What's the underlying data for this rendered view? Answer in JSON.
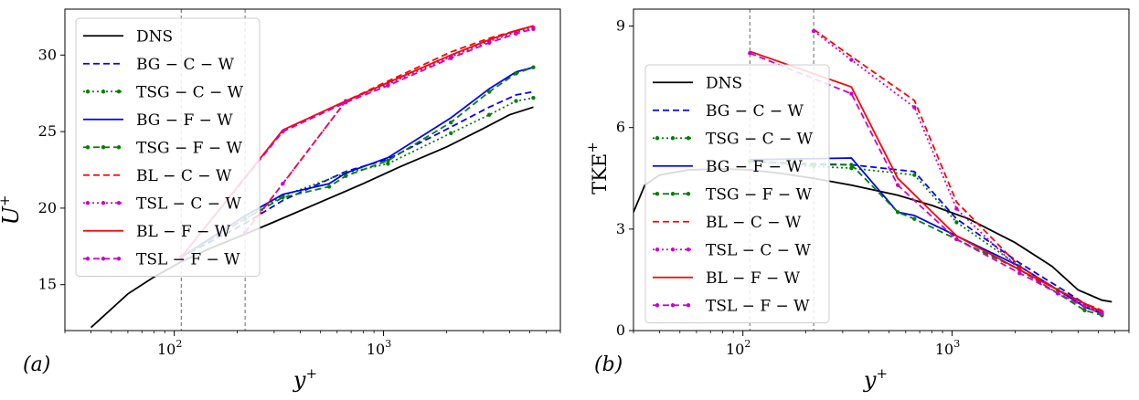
{
  "figure": {
    "panels": [
      {
        "label": "(a)",
        "ylabel_main": "U",
        "ylabel_sup": "+",
        "xlabel_main": "y",
        "xlabel_sup": "+"
      },
      {
        "label": "(b)",
        "ylabel_main": "TKE",
        "ylabel_sup": "+",
        "xlabel_main": "y",
        "xlabel_sup": "+"
      }
    ]
  },
  "chart_data": [
    {
      "type": "line",
      "panel_label": "(a)",
      "xscale": "log",
      "xlim": [
        30,
        7000
      ],
      "ylim": [
        12,
        33
      ],
      "ylabel": "U+",
      "xlabel": "y+",
      "xticks": [
        {
          "value": 100,
          "base": "10",
          "exp": "2"
        },
        {
          "value": 1000,
          "base": "10",
          "exp": "3"
        }
      ],
      "yticks": [
        15,
        20,
        25,
        30
      ],
      "vlines": [
        108,
        218
      ],
      "legend_position": "upper-left",
      "series": [
        {
          "name": "DNS",
          "color": "#000000",
          "dash": "",
          "marker": false,
          "x": [
            40,
            60,
            80,
            108,
            150,
            218,
            300,
            500,
            800,
            1200,
            2000,
            3000,
            4000,
            5200
          ],
          "y": [
            12.2,
            14.4,
            15.5,
            16.5,
            17.4,
            18.3,
            19.1,
            20.4,
            21.6,
            22.7,
            24.0,
            25.2,
            26.1,
            26.6
          ]
        },
        {
          "name": "BG − C − W",
          "color": "#0000ff",
          "dash": "7,4",
          "marker": false,
          "x": [
            108,
            218,
            330,
            660,
            1050,
            2100,
            3200,
            4300,
            5200
          ],
          "y": [
            16.8,
            19.0,
            20.5,
            22.4,
            23.2,
            25.3,
            26.6,
            27.4,
            27.6
          ]
        },
        {
          "name": "TSG − C − W",
          "color": "#008000",
          "dash": "2,3",
          "marker": true,
          "x": [
            108,
            218,
            330,
            660,
            1050,
            2100,
            3200,
            4300,
            5200
          ],
          "y": [
            16.8,
            19.3,
            20.8,
            22.3,
            22.9,
            24.9,
            26.1,
            27.0,
            27.2
          ]
        },
        {
          "name": "BG − F − W",
          "color": "#0000ff",
          "dash": "",
          "marker": false,
          "x": [
            108,
            218,
            330,
            550,
            660,
            1050,
            2100,
            3200,
            4300,
            5200
          ],
          "y": [
            16.8,
            19.5,
            20.9,
            21.6,
            22.3,
            23.3,
            25.9,
            27.8,
            28.9,
            29.2
          ]
        },
        {
          "name": "TSG − F − W",
          "color": "#008000",
          "dash": "7,4",
          "marker": true,
          "x": [
            108,
            218,
            330,
            550,
            660,
            1050,
            2100,
            3200,
            4300,
            5200
          ],
          "y": [
            16.8,
            19.3,
            20.7,
            21.4,
            22.1,
            23.1,
            25.6,
            27.6,
            28.8,
            29.2
          ]
        },
        {
          "name": "BL − C − W",
          "color": "#ff0000",
          "dash": "7,4",
          "marker": false,
          "x": [
            218,
            330,
            660,
            1050,
            2100,
            3200,
            4300,
            5200
          ],
          "y": [
            18.4,
            21.6,
            27.0,
            28.3,
            30.2,
            31.1,
            31.6,
            31.9
          ]
        },
        {
          "name": "TSL − C − W",
          "color": "#cc00cc",
          "dash": "2,3",
          "marker": true,
          "x": [
            218,
            330,
            660,
            1050,
            2100,
            3200,
            4300,
            5200
          ],
          "y": [
            18.4,
            21.6,
            27.0,
            28.1,
            29.9,
            30.9,
            31.5,
            31.8
          ]
        },
        {
          "name": "BL − F − W",
          "color": "#ff0000",
          "dash": "",
          "marker": false,
          "x": [
            108,
            330,
            660,
            1050,
            2100,
            3200,
            4300,
            5200
          ],
          "y": [
            16.8,
            25.1,
            27.0,
            28.2,
            30.0,
            31.0,
            31.6,
            31.9
          ]
        },
        {
          "name": "TSL − F − W",
          "color": "#cc00cc",
          "dash": "7,4",
          "marker": true,
          "x": [
            108,
            330,
            660,
            1050,
            2100,
            3200,
            4300,
            5200
          ],
          "y": [
            16.8,
            25.0,
            26.9,
            28.0,
            29.8,
            30.8,
            31.4,
            31.7
          ]
        }
      ]
    },
    {
      "type": "line",
      "panel_label": "(b)",
      "xscale": "log",
      "xlim": [
        30,
        7000
      ],
      "ylim": [
        0,
        9.5
      ],
      "ylabel": "TKE+",
      "xlabel": "y+",
      "xticks": [
        {
          "value": 100,
          "base": "10",
          "exp": "2"
        },
        {
          "value": 1000,
          "base": "10",
          "exp": "3"
        }
      ],
      "yticks": [
        0,
        3,
        6,
        9
      ],
      "vlines": [
        108,
        218
      ],
      "legend_position": "left",
      "series": [
        {
          "name": "DNS",
          "color": "#000000",
          "dash": "",
          "marker": false,
          "x": [
            30,
            34,
            40,
            55,
            80,
            108,
            150,
            218,
            330,
            550,
            800,
            1200,
            2000,
            3000,
            4000,
            5200,
            5800
          ],
          "y": [
            3.5,
            4.3,
            4.6,
            4.75,
            4.78,
            4.75,
            4.65,
            4.5,
            4.3,
            4.0,
            3.7,
            3.3,
            2.6,
            1.9,
            1.2,
            0.9,
            0.85
          ]
        },
        {
          "name": "BG − C − W",
          "color": "#0000ff",
          "dash": "7,4",
          "marker": false,
          "x": [
            108,
            218,
            330,
            660,
            1050,
            2100,
            3200,
            4300,
            5200
          ],
          "y": [
            5.0,
            4.9,
            4.9,
            4.7,
            3.3,
            2.0,
            1.3,
            0.8,
            0.55
          ]
        },
        {
          "name": "TSG − C − W",
          "color": "#008000",
          "dash": "2,3",
          "marker": true,
          "x": [
            108,
            218,
            330,
            660,
            1050,
            2100,
            3200,
            4300,
            5200
          ],
          "y": [
            5.0,
            4.85,
            4.8,
            4.6,
            3.2,
            1.9,
            1.2,
            0.75,
            0.5
          ]
        },
        {
          "name": "BG − F − W",
          "color": "#0000ff",
          "dash": "",
          "marker": false,
          "x": [
            108,
            330,
            550,
            660,
            1050,
            2100,
            3200,
            4300,
            5200
          ],
          "y": [
            5.05,
            5.1,
            3.5,
            3.4,
            2.8,
            1.9,
            1.2,
            0.7,
            0.5
          ]
        },
        {
          "name": "TSG − F − W",
          "color": "#008000",
          "dash": "7,4",
          "marker": true,
          "x": [
            108,
            330,
            550,
            660,
            1050,
            2100,
            3200,
            4300,
            5200
          ],
          "y": [
            5.0,
            4.9,
            3.5,
            3.3,
            2.7,
            1.8,
            1.1,
            0.6,
            0.45
          ]
        },
        {
          "name": "BL − C − W",
          "color": "#ff0000",
          "dash": "7,4",
          "marker": false,
          "x": [
            218,
            330,
            660,
            1050,
            2100,
            3200,
            4300,
            5200
          ],
          "y": [
            8.9,
            8.1,
            6.8,
            3.8,
            1.9,
            1.2,
            0.8,
            0.6
          ]
        },
        {
          "name": "TSL − C − W",
          "color": "#cc00cc",
          "dash": "2,3",
          "marker": true,
          "x": [
            218,
            330,
            660,
            1050,
            2100,
            3200,
            4300,
            5200
          ],
          "y": [
            8.85,
            8.0,
            6.6,
            3.6,
            1.8,
            1.1,
            0.75,
            0.55
          ]
        },
        {
          "name": "BL − F − W",
          "color": "#ff0000",
          "dash": "",
          "marker": false,
          "x": [
            108,
            330,
            550,
            1050,
            2100,
            3200,
            4300,
            5200
          ],
          "y": [
            8.25,
            7.2,
            4.5,
            2.8,
            1.8,
            1.2,
            0.8,
            0.55
          ]
        },
        {
          "name": "TSL − F − W",
          "color": "#cc00cc",
          "dash": "7,4",
          "marker": true,
          "x": [
            108,
            330,
            550,
            1050,
            2100,
            3200,
            4300,
            5200
          ],
          "y": [
            8.2,
            7.0,
            4.3,
            2.7,
            1.7,
            1.1,
            0.7,
            0.5
          ]
        }
      ]
    }
  ]
}
